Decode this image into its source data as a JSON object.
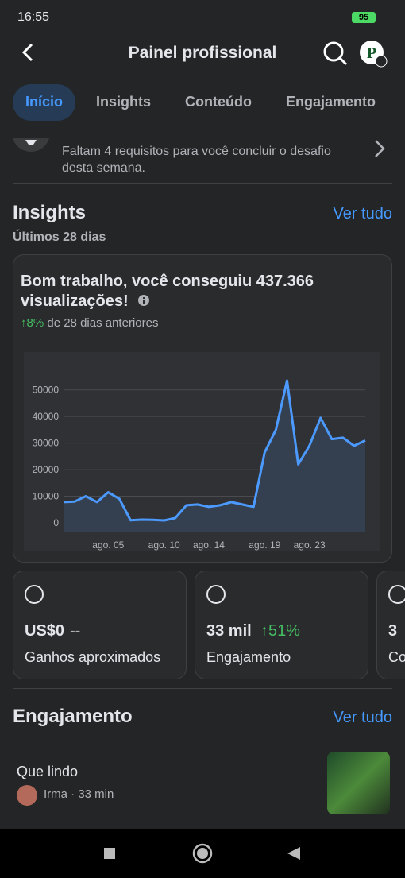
{
  "status_bar": {
    "time": "16:55",
    "battery": "95"
  },
  "header": {
    "title": "Painel profissional"
  },
  "tabs": [
    "Início",
    "Insights",
    "Conteúdo",
    "Engajamento"
  ],
  "challenge": {
    "text": "Faltam 4 requisitos para você concluir o desafio desta semana."
  },
  "insights": {
    "title": "Insights",
    "link": "Ver tudo",
    "period": "Últimos 28 dias",
    "card": {
      "headline": "Bom trabalho, você conseguiu 437.366 visualizações!",
      "change": "↑8%",
      "change_text": "de 28 dias anteriores"
    }
  },
  "chart_data": {
    "type": "area",
    "color": "#4c9aff",
    "fill": "#34404f",
    "categories": [
      null,
      null,
      null,
      null,
      "ago. 05",
      null,
      null,
      null,
      null,
      "ago. 10",
      null,
      null,
      null,
      "ago. 14",
      null,
      null,
      null,
      null,
      "ago. 19",
      null,
      null,
      null,
      "ago. 23",
      null,
      null,
      null,
      null,
      null
    ],
    "values": [
      7800,
      8000,
      10000,
      7800,
      11500,
      9000,
      1000,
      1200,
      1100,
      900,
      1800,
      6600,
      6900,
      6000,
      6600,
      7800,
      6900,
      6000,
      26500,
      35000,
      53500,
      22000,
      29000,
      39500,
      31500,
      32000,
      29000,
      31000
    ],
    "ylim": [
      0,
      55000
    ],
    "yticks": [
      0,
      10000,
      20000,
      30000,
      40000,
      50000
    ],
    "grid": true
  },
  "metrics": [
    {
      "value": "US$0",
      "change": "--",
      "label": "Ganhos aproximados"
    },
    {
      "value": "33 mil",
      "change": "↑51%",
      "label": "Engajamento"
    },
    {
      "value": "3",
      "label": "Co"
    }
  ],
  "engagement": {
    "title": "Engajamento",
    "link": "Ver tudo",
    "item": {
      "title": "Que lindo",
      "meta": "Irma · 33 min"
    }
  }
}
